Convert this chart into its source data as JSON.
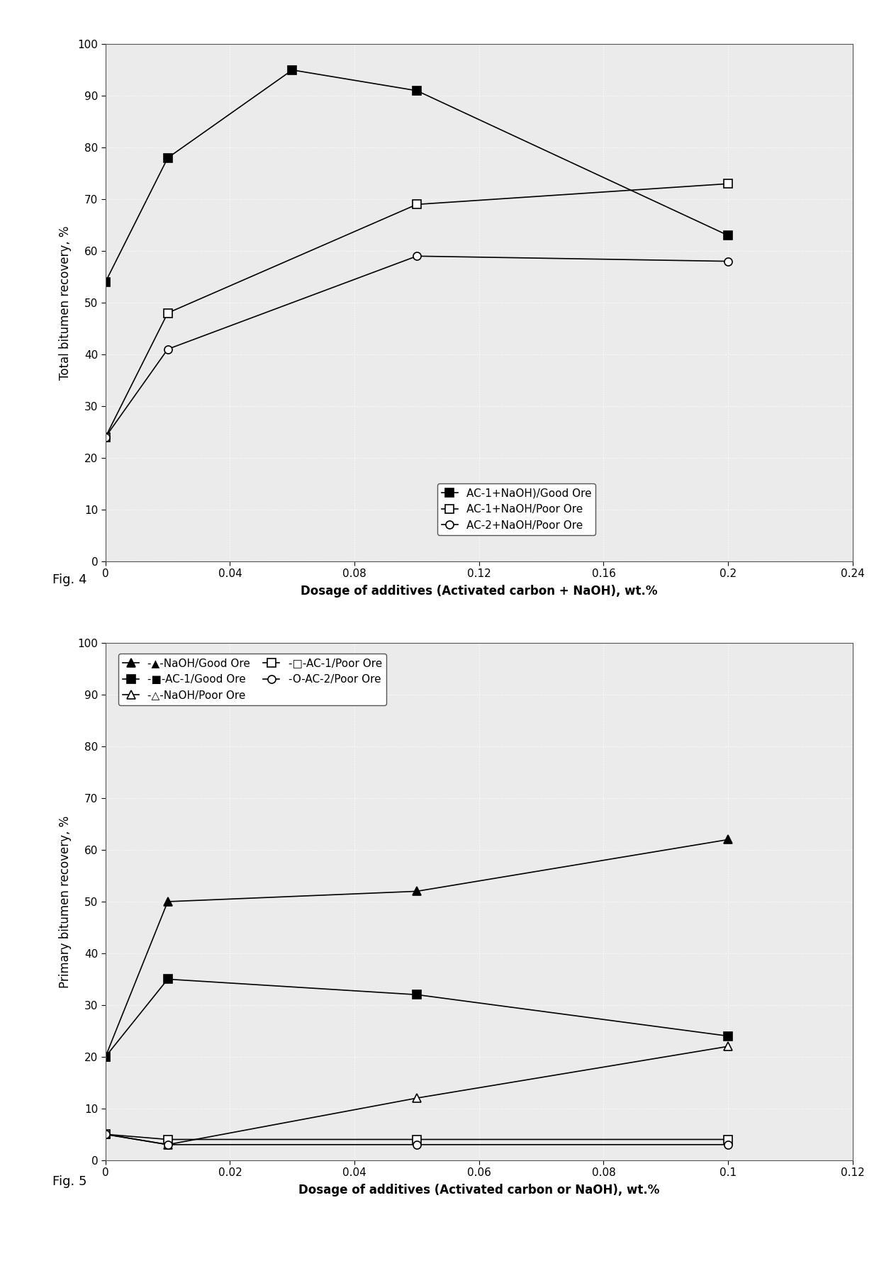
{
  "fig4": {
    "xlabel": "Dosage of additives (Activated carbon + NaOH), wt.%",
    "ylabel": "Total bitumen recovery, %",
    "xlim": [
      0,
      0.24
    ],
    "ylim": [
      0,
      100
    ],
    "xticks": [
      0,
      0.04,
      0.08,
      0.12,
      0.16,
      0.2,
      0.24
    ],
    "yticks": [
      0,
      10,
      20,
      30,
      40,
      50,
      60,
      70,
      80,
      90,
      100
    ],
    "series": [
      {
        "label": "AC-1+NaOH)/Good Ore",
        "x": [
          0,
          0.02,
          0.06,
          0.1,
          0.2
        ],
        "y": [
          54,
          78,
          95,
          91,
          63
        ],
        "marker": "s",
        "filled": true
      },
      {
        "label": "AC-1+NaOH/Poor Ore",
        "x": [
          0,
          0.02,
          0.1,
          0.2
        ],
        "y": [
          24,
          48,
          69,
          73
        ],
        "marker": "s",
        "filled": false
      },
      {
        "label": "AC-2+NaOH/Poor Ore",
        "x": [
          0,
          0.02,
          0.1,
          0.2
        ],
        "y": [
          24,
          41,
          59,
          58
        ],
        "marker": "o",
        "filled": false
      }
    ]
  },
  "fig5": {
    "xlabel": "Dosage of additives (Activated carbon or NaOH), wt.%",
    "ylabel": "Primary bitumen recovery, %",
    "xlim": [
      0,
      0.12
    ],
    "ylim": [
      0,
      100
    ],
    "xticks": [
      0,
      0.02,
      0.04,
      0.06,
      0.08,
      0.1,
      0.12
    ],
    "yticks": [
      0,
      10,
      20,
      30,
      40,
      50,
      60,
      70,
      80,
      90,
      100
    ],
    "series": [
      {
        "label": "-▲-NaOH/Good Ore",
        "x": [
          0,
          0.01,
          0.05,
          0.1
        ],
        "y": [
          20,
          50,
          52,
          62
        ],
        "marker": "^",
        "filled": true
      },
      {
        "label": "-■-AC-1/Good Ore",
        "x": [
          0,
          0.01,
          0.05,
          0.1
        ],
        "y": [
          20,
          35,
          32,
          24
        ],
        "marker": "s",
        "filled": true
      },
      {
        "label": "-△-NaOH/Poor Ore",
        "x": [
          0,
          0.01,
          0.05,
          0.1
        ],
        "y": [
          5,
          3,
          12,
          22
        ],
        "marker": "^",
        "filled": false
      },
      {
        "label": "-□-AC-1/Poor Ore",
        "x": [
          0,
          0.01,
          0.05,
          0.1
        ],
        "y": [
          5,
          4,
          4,
          4
        ],
        "marker": "s",
        "filled": false
      },
      {
        "label": "-O-AC-2/Poor Ore",
        "x": [
          0,
          0.01,
          0.05,
          0.1
        ],
        "y": [
          5,
          3,
          3,
          3
        ],
        "marker": "o",
        "filled": false
      }
    ]
  },
  "fig4_label": "Fig. 4",
  "fig5_label": "Fig. 5",
  "bg_color": "#ffffff",
  "plot_bg": "#ebebeb"
}
